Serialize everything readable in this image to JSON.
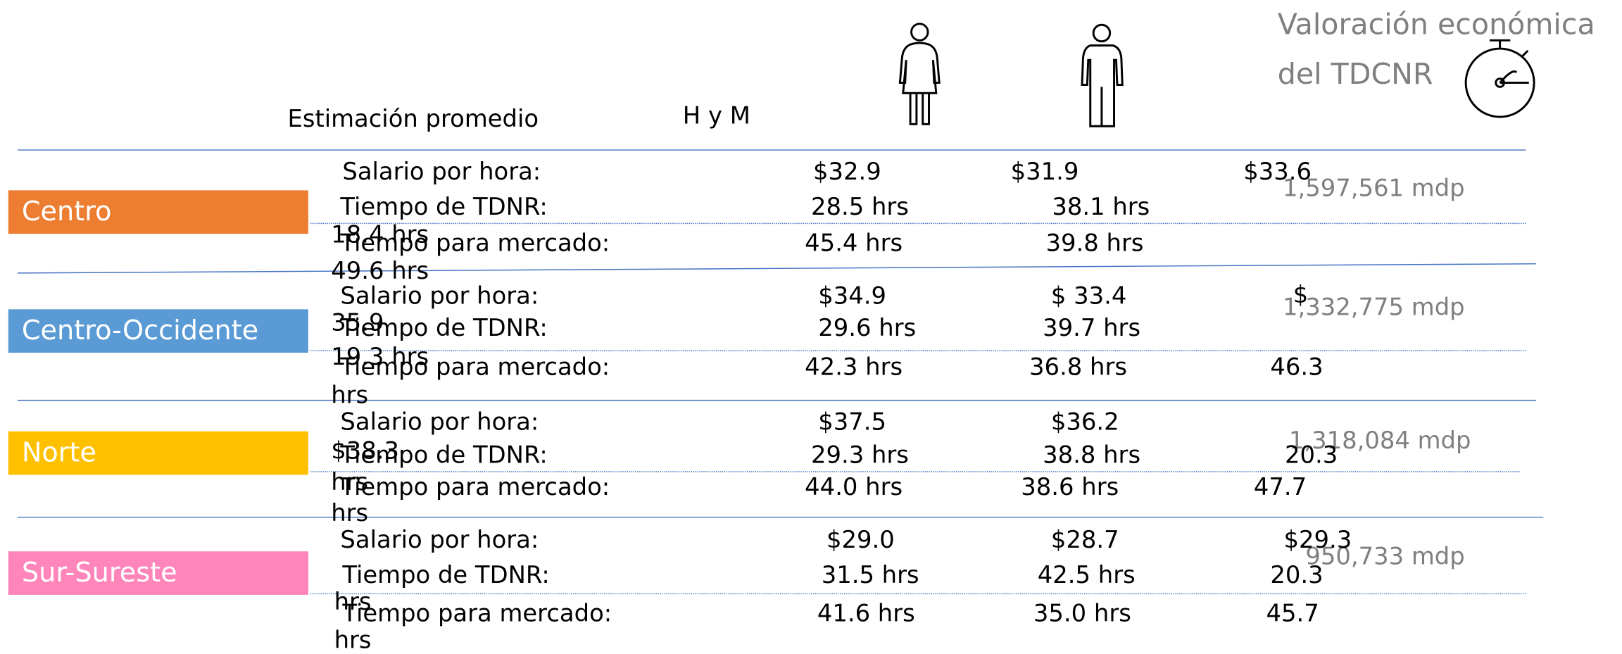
{
  "header": {
    "title_line1": "Valoración económica",
    "title_line2": "del TDCNR",
    "estimate": "Estimación promedio",
    "both": "H y M"
  },
  "regions": [
    {
      "name": "Centro",
      "color": "#ed7d31",
      "valuation": "1,597,561 mdp",
      "rows": [
        {
          "label": "Salario por hora:",
          "hm": "$32.9",
          "women": "$31.9",
          "men": [
            "$33.6"
          ]
        },
        {
          "label": "Tiempo de TDNR:",
          "hm": "28.5  hrs",
          "women": "38.1 hrs",
          "men": [
            "18.4 hrs"
          ]
        },
        {
          "label": "Tiempo para mercado:",
          "hm": "45.4 hrs",
          "women": "39.8 hrs",
          "men": [
            "49.6 hrs"
          ]
        }
      ]
    },
    {
      "name": "Centro-Occidente",
      "color": "#5b9bd5",
      "valuation": "1,332,775 mdp",
      "rows": [
        {
          "label": "Salario por hora:",
          "hm": "$34.9",
          "women": "$ 33.4",
          "men": [
            "$",
            "35.9"
          ]
        },
        {
          "label": "Tiempo de TDNR:",
          "hm": "29.6 hrs",
          "women": "39.7 hrs",
          "men": [
            "19.3 hrs"
          ]
        },
        {
          "label": "Tiempo para mercado:",
          "hm": "42.3 hrs",
          "women": "36.8 hrs",
          "men": [
            "46.3",
            "hrs"
          ]
        }
      ]
    },
    {
      "name": "Norte",
      "color": "#ffc000",
      "valuation": "1,318,084 mdp",
      "rows": [
        {
          "label": "Salario por hora:",
          "hm": "$37.5",
          "women": "$36.2",
          "men": [
            "$38.3"
          ]
        },
        {
          "label": "Tiempo de TDNR:",
          "hm": "29.3 hrs",
          "women": "38.8 hrs",
          "men": [
            "20.3",
            "hrs"
          ]
        },
        {
          "label": "Tiempo para mercado:",
          "hm": "44.0 hrs",
          "women": "38.6 hrs",
          "men": [
            "47.7",
            "hrs"
          ]
        }
      ]
    },
    {
      "name": "Sur-Sureste",
      "color": "#ff85bb",
      "valuation": "950,733 mdp",
      "rows": [
        {
          "label": "Salario por hora:",
          "hm": "$29.0",
          "women": "$28.7",
          "men": [
            "$29.3"
          ]
        },
        {
          "label": "Tiempo de TDNR:",
          "hm": "31.5 hrs",
          "women": "42.5 hrs",
          "men": [
            "20.3",
            "hrs"
          ]
        },
        {
          "label": "Tiempo para mercado:",
          "hm": "41.6 hrs",
          "women": "35.0 hrs",
          "men": [
            "45.7",
            "hrs"
          ]
        }
      ]
    }
  ]
}
